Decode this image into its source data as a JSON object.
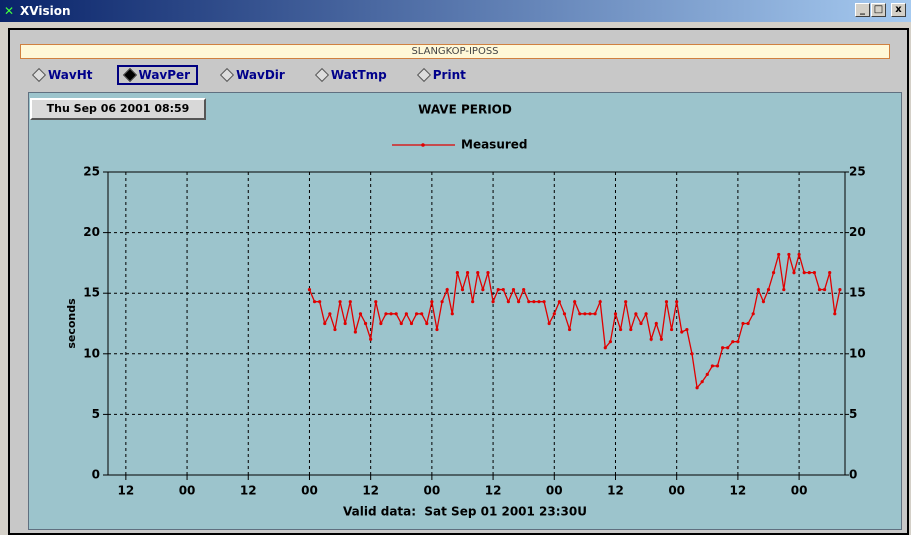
{
  "window_title": "XVision",
  "inner_title": "SLANGKOP-IPOSS",
  "toolbar": {
    "buttons": [
      "WavHt",
      "WavPer",
      "WavDir",
      "WatTmp",
      "Print"
    ],
    "selected": 1
  },
  "timestamp": "Thu Sep 06 2001 08:59",
  "chart_data": {
    "type": "line",
    "title": "WAVE PERIOD",
    "y_label": "seconds",
    "x_label": "Valid data:  Sat Sep 01 2001 23:30U",
    "x": [
      24,
      25,
      26,
      27,
      28,
      29,
      30,
      31,
      32,
      33,
      34,
      35,
      36,
      37,
      38,
      39,
      40,
      41,
      42,
      43,
      44,
      45,
      46,
      47,
      48,
      49,
      50,
      51,
      52,
      53,
      54,
      55,
      56,
      57,
      58,
      59,
      60,
      61,
      62,
      63,
      64,
      65,
      66,
      67,
      68,
      69,
      70,
      71,
      72,
      73,
      74,
      75,
      76,
      77,
      78,
      79,
      80,
      81,
      82,
      83,
      84,
      85,
      86,
      87,
      88,
      89,
      90,
      91,
      92,
      93,
      94,
      95,
      96,
      97,
      98,
      99,
      100,
      101,
      102,
      103,
      104,
      105,
      106,
      107,
      108,
      109,
      110,
      111,
      112,
      113,
      114,
      115,
      116,
      117,
      118,
      119,
      120,
      121,
      122,
      123,
      124,
      125,
      126,
      127,
      128
    ],
    "series": [
      {
        "name": "Measured",
        "color": "#e00000",
        "values": [
          15.3,
          14.3,
          14.3,
          12.5,
          13.3,
          12.0,
          14.3,
          12.5,
          14.3,
          11.8,
          13.3,
          12.5,
          11.2,
          14.3,
          12.5,
          13.3,
          13.3,
          13.3,
          12.5,
          13.3,
          12.5,
          13.3,
          13.3,
          12.5,
          14.3,
          12.0,
          14.3,
          15.3,
          13.3,
          16.7,
          15.3,
          16.7,
          14.3,
          16.7,
          15.3,
          16.7,
          14.3,
          15.3,
          15.3,
          14.3,
          15.3,
          14.3,
          15.3,
          14.3,
          14.3,
          14.3,
          14.3,
          12.5,
          13.3,
          14.3,
          13.3,
          12.0,
          14.3,
          13.3,
          13.3,
          13.3,
          13.3,
          14.3,
          10.5,
          11.0,
          13.3,
          12.0,
          14.3,
          12.0,
          13.3,
          12.5,
          13.3,
          11.2,
          12.5,
          11.2,
          14.3,
          12.0,
          14.3,
          11.8,
          12.0,
          10.0,
          7.2,
          7.7,
          8.3,
          9.0,
          9.0,
          10.5,
          10.5,
          11.0,
          11.0,
          12.5,
          12.5,
          13.3,
          15.3,
          14.3,
          15.3,
          16.7,
          18.2,
          15.3,
          18.2,
          16.7,
          18.2,
          16.7,
          16.7,
          16.7,
          15.3,
          15.3,
          16.7,
          13.3,
          15.3
        ]
      }
    ],
    "xlim": [
      -15.5,
      129
    ],
    "xticks": [
      {
        "value": -12,
        "label": "12"
      },
      {
        "value": 0,
        "label": "00"
      },
      {
        "value": 12,
        "label": "12"
      },
      {
        "value": 24,
        "label": "00"
      },
      {
        "value": 36,
        "label": "12"
      },
      {
        "value": 48,
        "label": "00"
      },
      {
        "value": 60,
        "label": "12"
      },
      {
        "value": 72,
        "label": "00"
      },
      {
        "value": 84,
        "label": "12"
      },
      {
        "value": 96,
        "label": "00"
      },
      {
        "value": 108,
        "label": "12"
      },
      {
        "value": 120,
        "label": "00"
      }
    ],
    "ylim": [
      0,
      25
    ],
    "yticks": [
      0,
      5,
      10,
      15,
      20,
      25
    ],
    "y2lim": [
      0,
      25
    ],
    "y2ticks": [
      0,
      5,
      10,
      15,
      20,
      25
    ],
    "grid": true
  }
}
